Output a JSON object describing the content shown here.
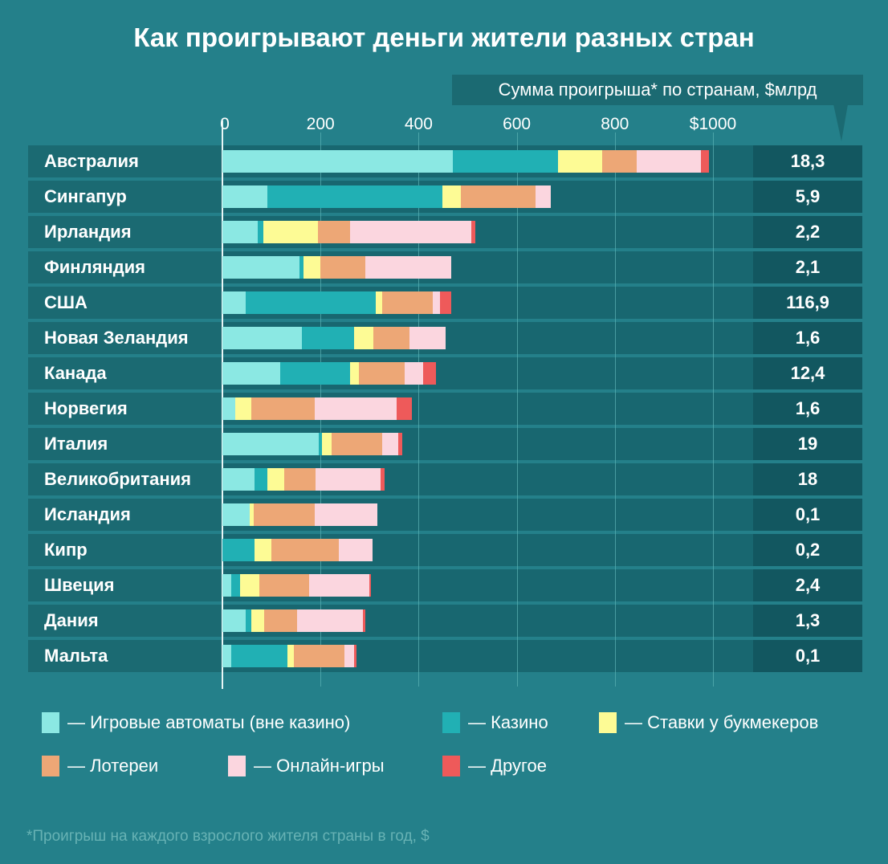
{
  "chart_data": {
    "type": "bar",
    "orientation": "horizontal",
    "stacked": true,
    "title": "Как проигрывают деньги жители разных стран",
    "subtitle": "Сумма проигрыша* по странам, $млрд",
    "footnote": "*Проигрыш на каждого взрослого жителя страны в год, $",
    "xlim": [
      0,
      1000
    ],
    "x_ticks": [
      "0",
      "200",
      "400",
      "600",
      "800",
      "$1000"
    ],
    "x_tick_values": [
      0,
      200,
      400,
      600,
      800,
      1000
    ],
    "grid": true,
    "legend_position": "bottom",
    "categories": [
      "Австралия",
      "Сингапур",
      "Ирландия",
      "Финляндия",
      "США",
      "Новая Зеландия",
      "Канада",
      "Норвегия",
      "Италия",
      "Великобритания",
      "Исландия",
      "Кипр",
      "Швеция",
      "Дания",
      "Мальта"
    ],
    "totals_label": [
      "18,3",
      "5,9",
      "2,2",
      "2,1",
      "116,9",
      "1,6",
      "12,4",
      "1,6",
      "19",
      "18",
      "0,1",
      "0,2",
      "2,4",
      "1,3",
      "0,1"
    ],
    "series": [
      {
        "name": "Игровые автоматы (вне казино)",
        "color": "#8be8e3",
        "values": [
          470,
          91,
          72,
          157,
          47,
          162,
          118,
          26,
          196,
          66,
          56,
          0,
          18,
          48,
          18
        ]
      },
      {
        "name": "Казино",
        "color": "#21b0b4",
        "values": [
          214,
          358,
          11,
          9,
          266,
          106,
          143,
          0,
          7,
          25,
          0,
          66,
          18,
          11,
          114
        ]
      },
      {
        "name": "Ставки у букмекеров",
        "color": "#fdfb95",
        "values": [
          90,
          37,
          112,
          33,
          12,
          39,
          17,
          33,
          19,
          35,
          8,
          34,
          39,
          26,
          13
        ]
      },
      {
        "name": "Лотереи",
        "color": "#eda776",
        "values": [
          70,
          152,
          66,
          92,
          104,
          75,
          93,
          129,
          104,
          64,
          124,
          138,
          101,
          67,
          104
        ]
      },
      {
        "name": "Онлайн-игры",
        "color": "#fbd6df",
        "values": [
          131,
          31,
          246,
          176,
          15,
          73,
          38,
          167,
          33,
          132,
          128,
          68,
          124,
          134,
          19
        ]
      },
      {
        "name": "Другое",
        "color": "#ee5a5a",
        "values": [
          17,
          0,
          9,
          0,
          23,
          0,
          27,
          31,
          8,
          8,
          0,
          0,
          3,
          5,
          6
        ]
      }
    ]
  }
}
